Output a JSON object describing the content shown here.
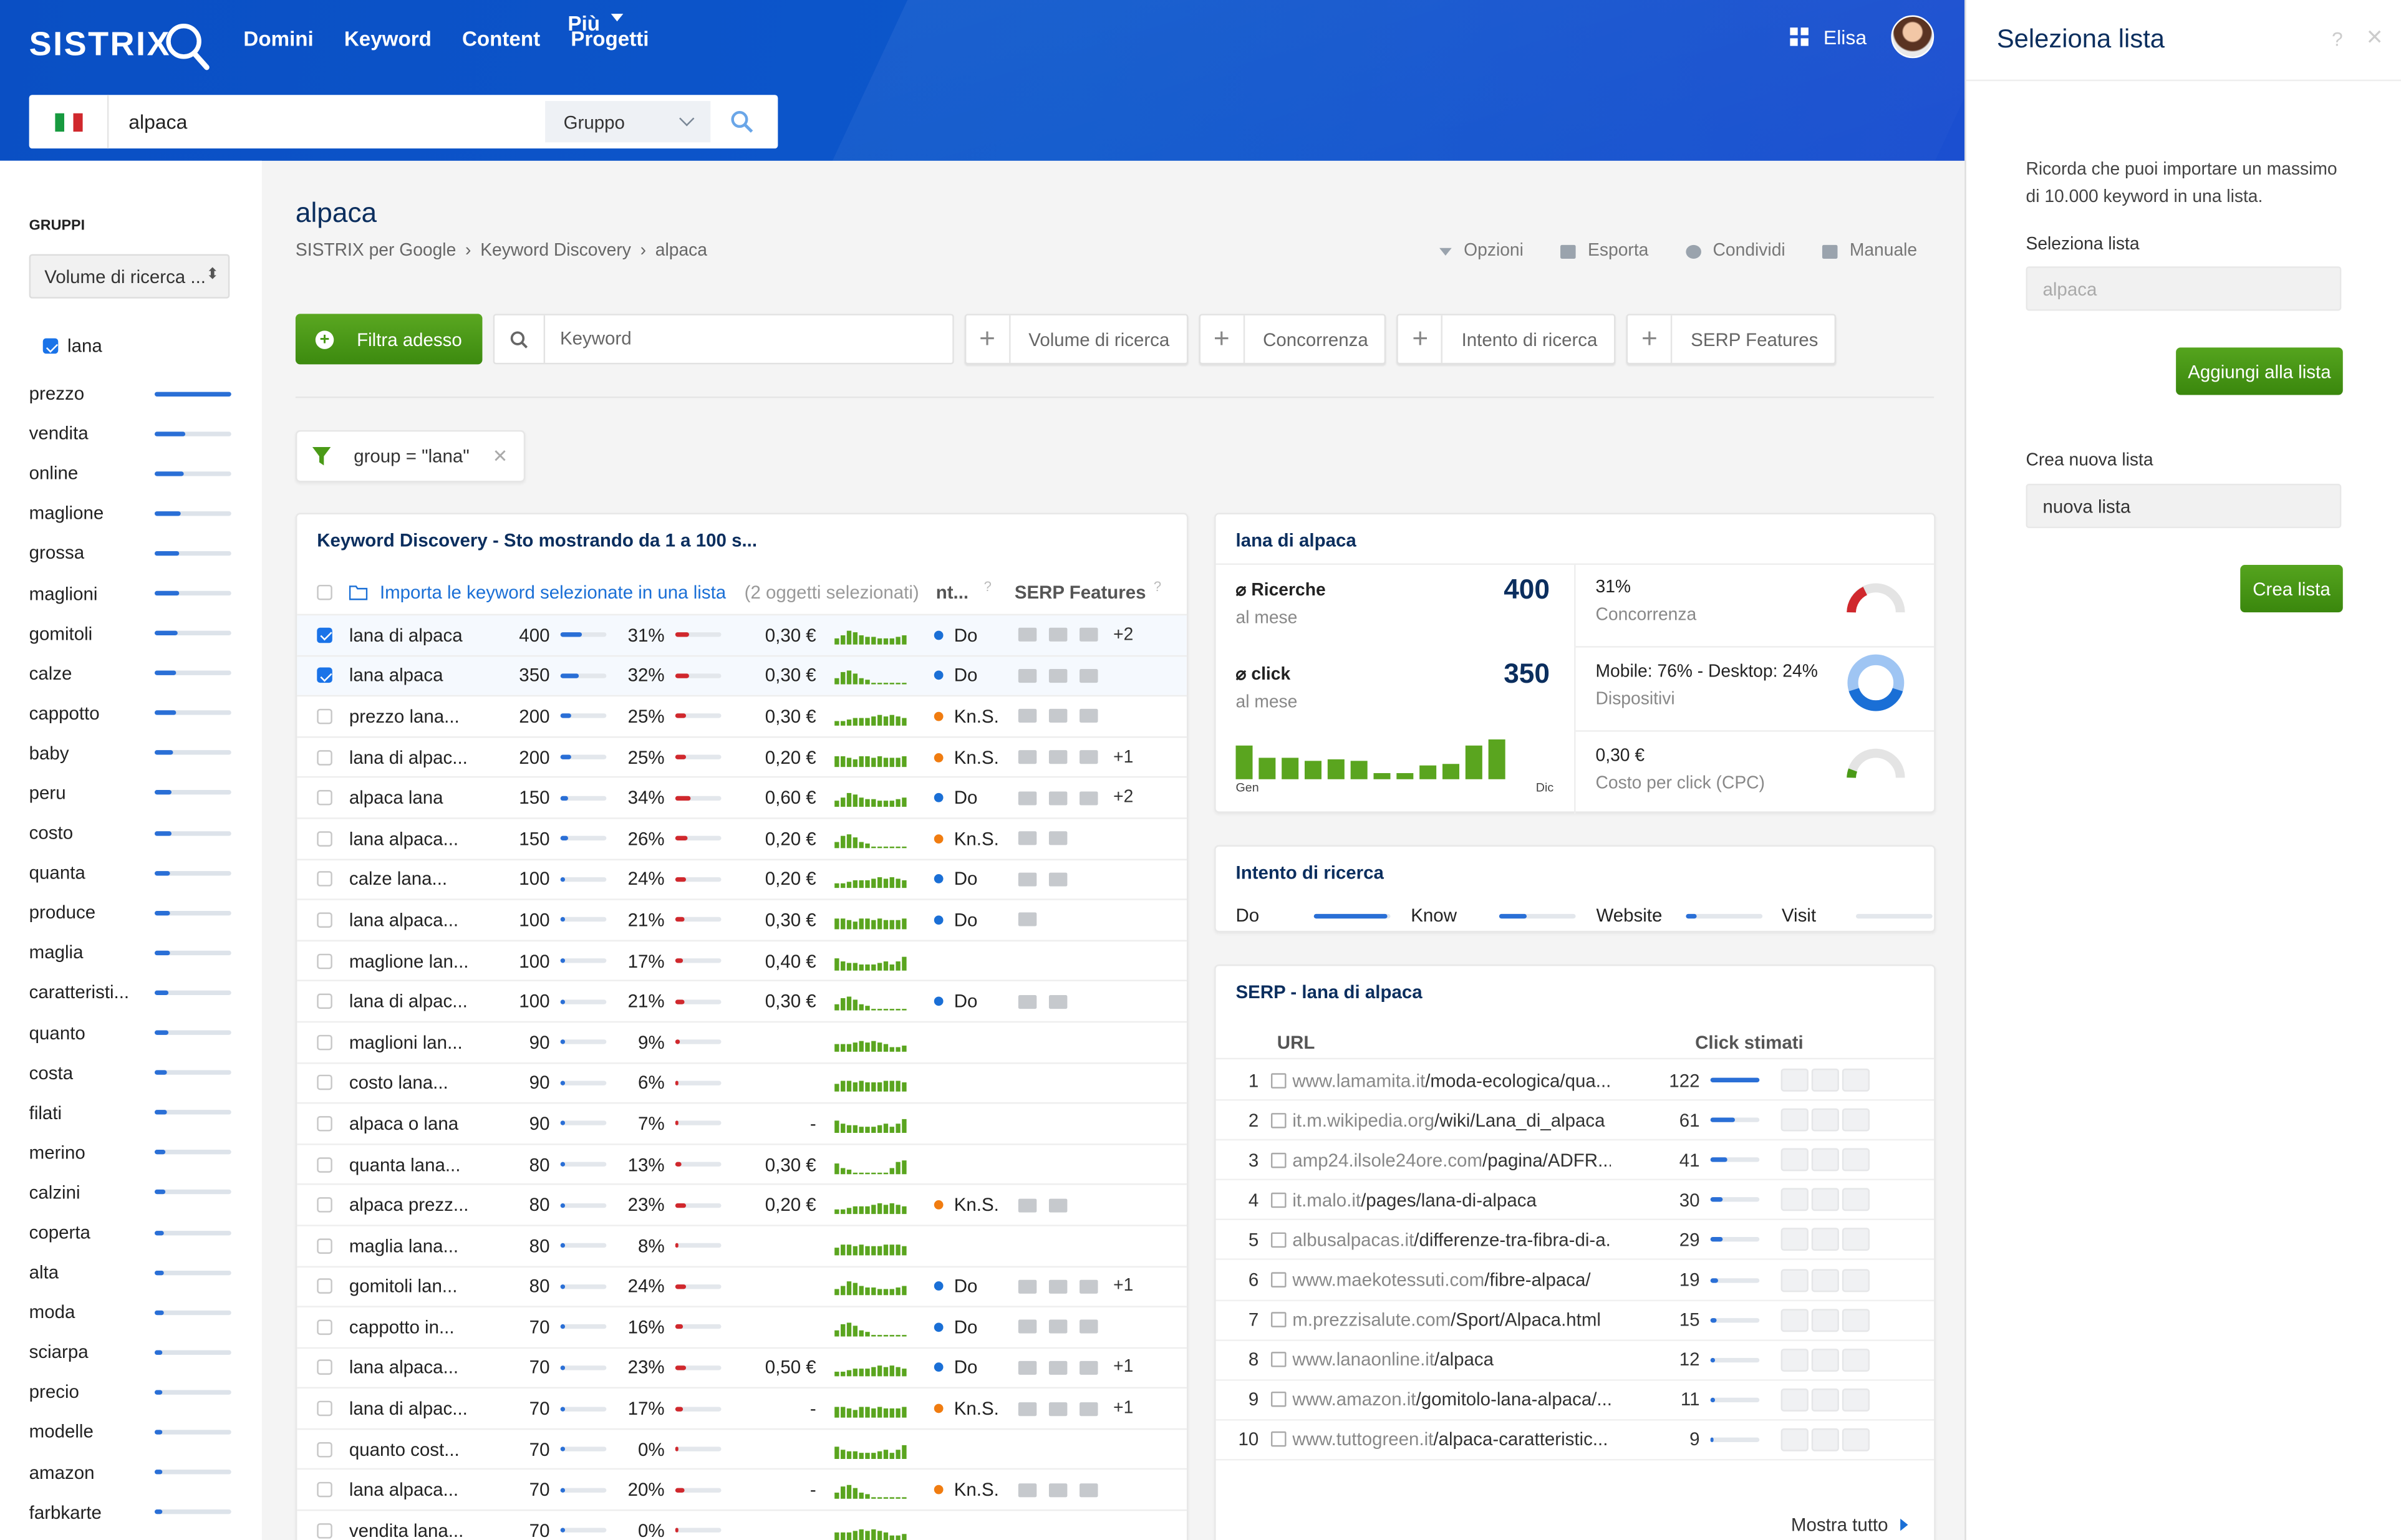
{
  "header": {
    "logo": "SISTRIX",
    "nav": [
      "Domini",
      "Keyword",
      "Content",
      "Progetti",
      "Più"
    ],
    "user": "Elisa"
  },
  "search": {
    "value": "alpaca",
    "group": "Gruppo"
  },
  "sidebar": {
    "title": "GRUPPI",
    "select": "Volume di ricerca ...",
    "checked": "lana",
    "items": [
      [
        "prezzo",
        100
      ],
      [
        "vendita",
        35
      ],
      [
        "online",
        33
      ],
      [
        "maglione",
        28
      ],
      [
        "grossa",
        27
      ],
      [
        "maglioni",
        25
      ],
      [
        "gomitoli",
        23
      ],
      [
        "calze",
        22
      ],
      [
        "cappotto",
        21
      ],
      [
        "baby",
        17
      ],
      [
        "peru",
        16
      ],
      [
        "costo",
        15
      ],
      [
        "quanta",
        14
      ],
      [
        "produce",
        13
      ],
      [
        "maglia",
        12
      ],
      [
        "caratteristi...",
        11
      ],
      [
        "quanto",
        10
      ],
      [
        "costa",
        9
      ],
      [
        "filati",
        8
      ],
      [
        "merino",
        7
      ],
      [
        "calzini",
        6
      ],
      [
        "coperta",
        5
      ],
      [
        "alta",
        4
      ],
      [
        "moda",
        4
      ],
      [
        "sciarpa",
        3
      ],
      [
        "precio",
        3
      ],
      [
        "modelle",
        3
      ],
      [
        "amazon",
        3
      ],
      [
        "farbkarte",
        3
      ]
    ]
  },
  "main": {
    "title": "alpaca",
    "crumbs": [
      "SISTRIX per Google",
      "Keyword Discovery",
      "alpaca"
    ],
    "tools": [
      "Opzioni",
      "Esporta",
      "Condividi",
      "Manuale"
    ],
    "filter_button": "Filtra adesso",
    "keyword_placeholder": "Keyword",
    "filters": [
      "Volume di ricerca",
      "Concorrenza",
      "Intento di ricerca",
      "SERP Features"
    ],
    "active_filter": "group = \"lana\""
  },
  "table": {
    "title": "Keyword Discovery - Sto mostrando da 1 a 100 s...",
    "import": "Importa le keyword selezionate in una lista",
    "selected": "(2 oggetti selezionati)",
    "col_intent": "nt...",
    "col_serp": "SERP Features",
    "rows": [
      {
        "kw": "lana di alpaca",
        "vol": "400",
        "pct": "31%",
        "cpc": "0,30 €",
        "int": "Do",
        "ic": "do",
        "serp": 3,
        "plus": "+2",
        "on": true
      },
      {
        "kw": "lana alpaca",
        "vol": "350",
        "pct": "32%",
        "cpc": "0,30 €",
        "int": "Do",
        "ic": "do",
        "serp": 3,
        "plus": "",
        "on": true
      },
      {
        "kw": "prezzo lana...",
        "vol": "200",
        "pct": "25%",
        "cpc": "0,30 €",
        "int": "Kn.S.",
        "ic": "kn",
        "serp": 3,
        "plus": ""
      },
      {
        "kw": "lana di alpac...",
        "vol": "200",
        "pct": "25%",
        "cpc": "0,20 €",
        "int": "Kn.S.",
        "ic": "kn",
        "serp": 3,
        "plus": "+1"
      },
      {
        "kw": "alpaca lana",
        "vol": "150",
        "pct": "34%",
        "cpc": "0,60 €",
        "int": "Do",
        "ic": "do",
        "serp": 3,
        "plus": "+2"
      },
      {
        "kw": "lana alpaca...",
        "vol": "150",
        "pct": "26%",
        "cpc": "0,20 €",
        "int": "Kn.S.",
        "ic": "kn",
        "serp": 2,
        "plus": ""
      },
      {
        "kw": "calze lana...",
        "vol": "100",
        "pct": "24%",
        "cpc": "0,20 €",
        "int": "Do",
        "ic": "do",
        "serp": 2,
        "plus": ""
      },
      {
        "kw": "lana alpaca...",
        "vol": "100",
        "pct": "21%",
        "cpc": "0,30 €",
        "int": "Do",
        "ic": "do",
        "serp": 1,
        "plus": ""
      },
      {
        "kw": "maglione lan...",
        "vol": "100",
        "pct": "17%",
        "cpc": "0,40 €",
        "int": "",
        "ic": "",
        "serp": 0,
        "plus": ""
      },
      {
        "kw": "lana di alpac...",
        "vol": "100",
        "pct": "21%",
        "cpc": "0,30 €",
        "int": "Do",
        "ic": "do",
        "serp": 2,
        "plus": ""
      },
      {
        "kw": "maglioni lan...",
        "vol": "90",
        "pct": "9%",
        "cpc": "",
        "int": "",
        "ic": "",
        "serp": 0,
        "plus": ""
      },
      {
        "kw": "costo lana...",
        "vol": "90",
        "pct": "6%",
        "cpc": "",
        "int": "",
        "ic": "",
        "serp": 0,
        "plus": ""
      },
      {
        "kw": "alpaca o lana",
        "vol": "90",
        "pct": "7%",
        "cpc": "-",
        "int": "",
        "ic": "",
        "serp": 0,
        "plus": ""
      },
      {
        "kw": "quanta lana...",
        "vol": "80",
        "pct": "13%",
        "cpc": "0,30 €",
        "int": "",
        "ic": "",
        "serp": 0,
        "plus": ""
      },
      {
        "kw": "alpaca prezz...",
        "vol": "80",
        "pct": "23%",
        "cpc": "0,20 €",
        "int": "Kn.S.",
        "ic": "kn",
        "serp": 2,
        "plus": ""
      },
      {
        "kw": "maglia lana...",
        "vol": "80",
        "pct": "8%",
        "cpc": "",
        "int": "",
        "ic": "",
        "serp": 0,
        "plus": ""
      },
      {
        "kw": "gomitoli lan...",
        "vol": "80",
        "pct": "24%",
        "cpc": "",
        "int": "Do",
        "ic": "do",
        "serp": 3,
        "plus": "+1"
      },
      {
        "kw": "cappotto in...",
        "vol": "70",
        "pct": "16%",
        "cpc": "",
        "int": "Do",
        "ic": "do",
        "serp": 3,
        "plus": ""
      },
      {
        "kw": "lana alpaca...",
        "vol": "70",
        "pct": "23%",
        "cpc": "0,50 €",
        "int": "Do",
        "ic": "do",
        "serp": 3,
        "plus": "+1"
      },
      {
        "kw": "lana di alpac...",
        "vol": "70",
        "pct": "17%",
        "cpc": "-",
        "int": "Kn.S.",
        "ic": "kn",
        "serp": 3,
        "plus": "+1"
      },
      {
        "kw": "quanto cost...",
        "vol": "70",
        "pct": "0%",
        "cpc": "",
        "int": "",
        "ic": "",
        "serp": 0,
        "plus": ""
      },
      {
        "kw": "lana alpaca...",
        "vol": "70",
        "pct": "20%",
        "cpc": "-",
        "int": "Kn.S.",
        "ic": "kn",
        "serp": 3,
        "plus": ""
      },
      {
        "kw": "vendita lana...",
        "vol": "70",
        "pct": "0%",
        "cpc": "",
        "int": "",
        "ic": "",
        "serp": 0,
        "plus": ""
      }
    ]
  },
  "kwpanel": {
    "title": "lana di alpaca",
    "ricerche_label": "Ricerche",
    "ricerche": "400",
    "clicks_label": "click",
    "clicks": "350",
    "per_month": "al mese",
    "months": [
      "Gen",
      "Dic"
    ],
    "competition": "31%",
    "competition_label": "Concorrenza",
    "devices": "Mobile: 76% - Desktop: 24%",
    "devices_label": "Dispositivi",
    "cpc": "0,30 €",
    "cpc_label": "Costo per click (CPC)",
    "monthly": [
      85,
      55,
      55,
      45,
      50,
      45,
      15,
      15,
      35,
      40,
      85,
      100
    ]
  },
  "intent": {
    "title": "Intento di ricerca",
    "labels": [
      "Do",
      "Know",
      "Website",
      "Visit"
    ],
    "levels": [
      0.95,
      0.35,
      0.15,
      0
    ]
  },
  "serp": {
    "title": "SERP - lana di alpaca",
    "col_url": "URL",
    "col_clicks": "Click stimati",
    "more": "Mostra tutto",
    "rows": [
      [
        "www.lamamita.it",
        "/moda-ecologica/qua...",
        "122"
      ],
      [
        "it.m.wikipedia.org",
        "/wiki/Lana_di_alpaca",
        "61"
      ],
      [
        "amp24.ilsole24ore.com",
        "/pagina/ADFR...",
        "41"
      ],
      [
        "it.malo.it",
        "/pages/lana-di-alpaca",
        "30"
      ],
      [
        "albusalpacas.it",
        "/differenze-tra-fibra-di-a...",
        "29"
      ],
      [
        "www.maekotessuti.com",
        "/fibre-alpaca/",
        "19"
      ],
      [
        "m.prezzisalute.com",
        "/Sport/Alpaca.html",
        "15"
      ],
      [
        "www.lanaonline.it",
        "/alpaca",
        "12"
      ],
      [
        "www.amazon.it",
        "/gomitolo-lana-alpaca/...",
        "11"
      ],
      [
        "www.tuttogreen.it",
        "/alpaca-caratteristic...",
        "9"
      ]
    ]
  },
  "drawer": {
    "title": "Seleziona lista",
    "help": "?",
    "close": "×",
    "note": "Ricorda che puoi importare un massimo di 10.000 keyword in una lista.",
    "select_label": "Seleziona lista",
    "select_value": "alpaca",
    "add_button": "Aggiungi alla lista",
    "create_label": "Crea nuova lista",
    "create_value": "nuova lista",
    "create_button": "Crea lista"
  },
  "colors": {
    "accent": "#0d57cc",
    "green": "#4a9a17",
    "blue": "#2a6fd6",
    "red": "#d0282d",
    "orange": "#f07c10"
  }
}
